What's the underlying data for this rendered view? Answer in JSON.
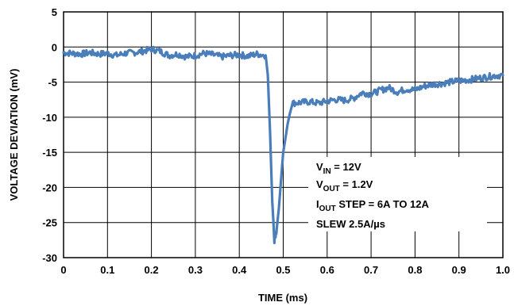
{
  "chart_data": {
    "type": "line",
    "xlabel": "TIME (ms)",
    "ylabel": "VOLTAGE DEVIATION (mV)",
    "xlim": [
      0,
      1.0
    ],
    "ylim": [
      -30,
      5
    ],
    "xticks": [
      "0",
      "0.1",
      "0.2",
      "0.3",
      "0.4",
      "0.5",
      "0.6",
      "0.7",
      "0.8",
      "0.9",
      "1.0"
    ],
    "yticks": [
      "5",
      "0",
      "-5",
      "-10",
      "-15",
      "-20",
      "-25",
      "-30"
    ],
    "grid": true,
    "line_color": "#4a7ebb",
    "series": [
      {
        "x": [
          0,
          0.02,
          0.04,
          0.06,
          0.08,
          0.1,
          0.12,
          0.14,
          0.16,
          0.18,
          0.2,
          0.22,
          0.24,
          0.26,
          0.28,
          0.3,
          0.32,
          0.34,
          0.36,
          0.38,
          0.4,
          0.42,
          0.44,
          0.46,
          0.465,
          0.47,
          0.475,
          0.48,
          0.485,
          0.49,
          0.495,
          0.5,
          0.51,
          0.52,
          0.54,
          0.56,
          0.58,
          0.6,
          0.62,
          0.64,
          0.66,
          0.68,
          0.7,
          0.72,
          0.74,
          0.76,
          0.78,
          0.8,
          0.82,
          0.84,
          0.86,
          0.88,
          0.9,
          0.92,
          0.94,
          0.96,
          0.98,
          1.0
        ],
        "y": [
          -0.8,
          -0.9,
          -1.0,
          -0.8,
          -1.0,
          -0.9,
          -1.2,
          -0.9,
          -0.8,
          -0.6,
          -0.3,
          -0.6,
          -1.2,
          -1.0,
          -1.4,
          -1.2,
          -0.9,
          -1.1,
          -1.4,
          -1.2,
          -1.1,
          -1.3,
          -1.0,
          -1.2,
          -4.0,
          -12.0,
          -22.0,
          -27.5,
          -26.0,
          -23.0,
          -19.0,
          -15.0,
          -11.0,
          -8.0,
          -7.9,
          -7.8,
          -8.0,
          -7.7,
          -7.5,
          -7.6,
          -7.3,
          -6.5,
          -6.7,
          -6.2,
          -5.8,
          -6.4,
          -6.0,
          -6.1,
          -5.6,
          -5.3,
          -5.2,
          -5.0,
          -4.8,
          -4.7,
          -4.5,
          -4.3,
          -4.1,
          -4.0
        ]
      }
    ],
    "annotations": {
      "vin_main": "V",
      "vin_sub": "IN",
      "vin_rest": " = 12V",
      "vout_main": "V",
      "vout_sub": "OUT",
      "vout_rest": " = 1.2V",
      "iout_main": "I",
      "iout_sub": "OUT",
      "iout_rest": " STEP = 6A TO 12A",
      "slew": "SLEW 2.5A/µs"
    }
  }
}
